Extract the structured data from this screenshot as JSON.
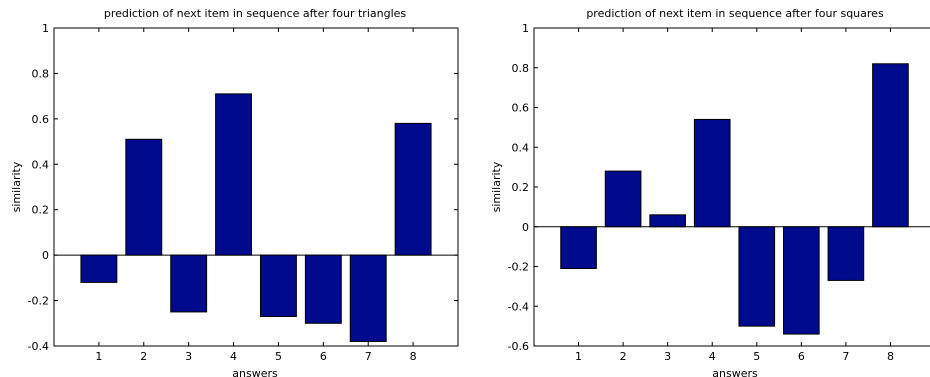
{
  "chart_data": [
    {
      "type": "bar",
      "title": "prediction of next item in sequence after four triangles",
      "xlabel": "answers",
      "ylabel": "similarity",
      "categories": [
        "1",
        "2",
        "3",
        "4",
        "5",
        "6",
        "7",
        "8"
      ],
      "values": [
        -0.12,
        0.51,
        -0.25,
        0.71,
        -0.27,
        -0.3,
        -0.38,
        0.58
      ],
      "ylim": [
        -0.4,
        1
      ],
      "yticks": [
        -0.4,
        -0.2,
        0,
        0.2,
        0.4,
        0.6,
        0.8,
        1
      ],
      "ytick_labels": [
        "-0.4",
        "-0.2",
        "0",
        "0.2",
        "0.4",
        "0.6",
        "0.8",
        "1"
      ],
      "grid": false,
      "bar_color": "#000a8c"
    },
    {
      "type": "bar",
      "title": "prediction of next item in sequence after four squares",
      "xlabel": "answers",
      "ylabel": "similarity",
      "categories": [
        "1",
        "2",
        "3",
        "4",
        "5",
        "6",
        "7",
        "8"
      ],
      "values": [
        -0.21,
        0.28,
        0.06,
        0.54,
        -0.5,
        -0.54,
        -0.27,
        0.82
      ],
      "ylim": [
        -0.6,
        1
      ],
      "yticks": [
        -0.6,
        -0.4,
        -0.2,
        0,
        0.2,
        0.4,
        0.6,
        0.8,
        1
      ],
      "ytick_labels": [
        "-0.6",
        "-0.4",
        "-0.2",
        "0",
        "0.2",
        "0.4",
        "0.6",
        "0.8",
        "1"
      ],
      "grid": false,
      "bar_color": "#000a8c"
    }
  ]
}
